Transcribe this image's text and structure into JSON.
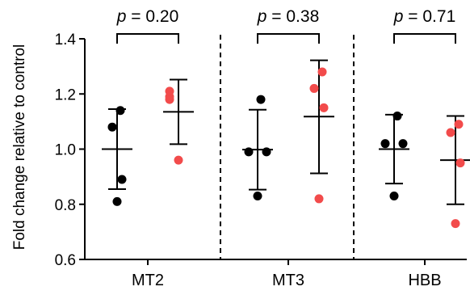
{
  "chart_data": {
    "type": "scatter",
    "ylabel": "Fold change relative to control",
    "ylim": [
      0.6,
      1.4
    ],
    "yticks": [
      "0.6",
      "0.8",
      "1.0",
      "1.2",
      "1.4"
    ],
    "categories": [
      "MT2",
      "MT3",
      "HBB"
    ],
    "colors": {
      "control": "#000000",
      "treated": "#f24b4b"
    },
    "groups": [
      {
        "category": "MT2",
        "p_label": "p = 0.20",
        "control": {
          "points": [
            0.81,
            0.89,
            1.08,
            1.14
          ],
          "mean": 1.0,
          "sd_low": 0.855,
          "sd_high": 1.145
        },
        "treated": {
          "points": [
            0.96,
            1.18,
            1.19,
            1.21
          ],
          "mean": 1.135,
          "sd_low": 1.018,
          "sd_high": 1.252
        }
      },
      {
        "category": "MT3",
        "p_label": "p = 0.38",
        "control": {
          "points": [
            0.83,
            0.99,
            0.99,
            1.18
          ],
          "mean": 0.998,
          "sd_low": 0.853,
          "sd_high": 1.143
        },
        "treated": {
          "points": [
            0.82,
            1.15,
            1.22,
            1.28
          ],
          "mean": 1.118,
          "sd_low": 0.912,
          "sd_high": 1.322
        }
      },
      {
        "category": "HBB",
        "p_label": "p = 0.71",
        "control": {
          "points": [
            0.83,
            1.02,
            1.02,
            1.12
          ],
          "mean": 1.0,
          "sd_low": 0.875,
          "sd_high": 1.125
        },
        "treated": {
          "points": [
            0.73,
            0.95,
            1.06,
            1.09
          ],
          "mean": 0.96,
          "sd_low": 0.8,
          "sd_high": 1.12
        }
      }
    ]
  }
}
